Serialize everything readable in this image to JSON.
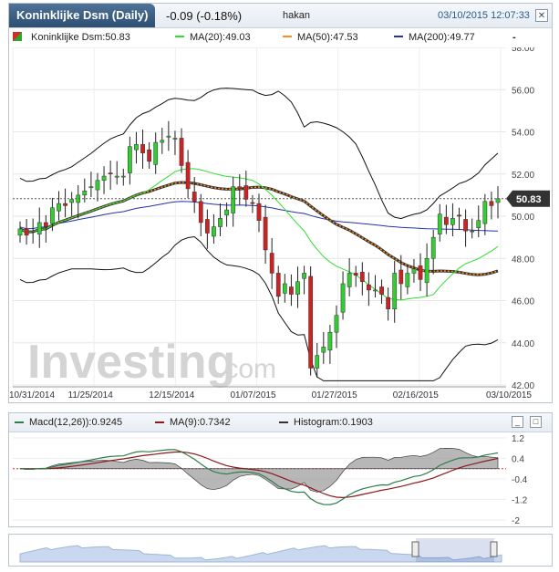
{
  "header": {
    "instrument": "Koninklijke Dsm (Daily)",
    "change": "-0.09 (-0.18%)",
    "user": "hakan",
    "datetime": "03/10/2015 12:07:33",
    "close_label": "✕"
  },
  "legend": {
    "price": "Koninklijke Dsm:50.83",
    "ma20": "MA(20):49.03",
    "ma50": "MA(50):47.53",
    "ma200": "MA(200):49.77",
    "dash": "-"
  },
  "price_label": "50.83",
  "watermark": {
    "brand": "Investing",
    "suffix": ".com"
  },
  "macd_header": {
    "macd": "Macd(12,26)):0.9245",
    "ma9": "MA(9):0.7342",
    "histogram": "Histogram:0.1903",
    "minimize": "_",
    "maximize": "□"
  },
  "colors": {
    "up": "#33cc33",
    "down": "#cc2222",
    "ma20": "#33dd33",
    "ma50": "#ff8c1a",
    "ma200": "#2233aa",
    "bands": "#111111",
    "macd": "#2e7d4f",
    "signal": "#8b1a1a",
    "histogram": "#999999"
  },
  "chart_data": [
    {
      "type": "candlestick",
      "title": "Koninklijke Dsm (Daily)",
      "x_tick_labels": [
        "10/31/2014",
        "11/25/2014",
        "12/15/2014",
        "01/07/2015",
        "01/27/2015",
        "02/16/2015",
        "03/10/2015"
      ],
      "y_tick_labels": [
        "58.00",
        "56.00",
        "54.00",
        "52.00",
        "50.00",
        "48.00",
        "46.00",
        "44.00",
        "42.00"
      ],
      "ylim": [
        42,
        58
      ],
      "last_price": 50.83,
      "closes": [
        49.4,
        49.1,
        49.3,
        49.7,
        49.5,
        50.4,
        50.6,
        50.5,
        50.8,
        51.0,
        51.2,
        51.4,
        51.7,
        51.9,
        52.0,
        51.9,
        51.9,
        53.3,
        53.4,
        53.0,
        52.6,
        53.5,
        53.6,
        53.8,
        53.7,
        52.4,
        51.3,
        50.7,
        49.7,
        49.2,
        49.5,
        49.9,
        50.3,
        51.4,
        51.3,
        50.8,
        50.6,
        49.8,
        48.4,
        47.3,
        46.2,
        46.8,
        46.3,
        46.9,
        47.3,
        42.8,
        43.4,
        43.8,
        44.5,
        45.3,
        46.8,
        47.3,
        47.2,
        46.9,
        46.5,
        46.5,
        46.3,
        45.6,
        47.3,
        46.8,
        47.3,
        47.5,
        47.0,
        48.0,
        49.0,
        50.1,
        49.6,
        49.9,
        50.0,
        49.3,
        49.3,
        49.8,
        50.7,
        50.5,
        50.83
      ],
      "series": [
        {
          "name": "MA(20)",
          "last": 49.03
        },
        {
          "name": "MA(50)",
          "last": 47.53
        },
        {
          "name": "MA(200)",
          "last": 49.77
        }
      ]
    },
    {
      "type": "line",
      "title": "Macd(12,26))",
      "y_tick_labels": [
        "1.2",
        "0.4",
        "-0.4",
        "-1.2",
        "-2"
      ],
      "ylim": [
        -2,
        1.2
      ],
      "series": [
        {
          "name": "Macd(12,26))",
          "last": 0.9245
        },
        {
          "name": "MA(9)",
          "last": 0.7342
        },
        {
          "name": "Histogram",
          "last": 0.1903
        }
      ]
    }
  ]
}
